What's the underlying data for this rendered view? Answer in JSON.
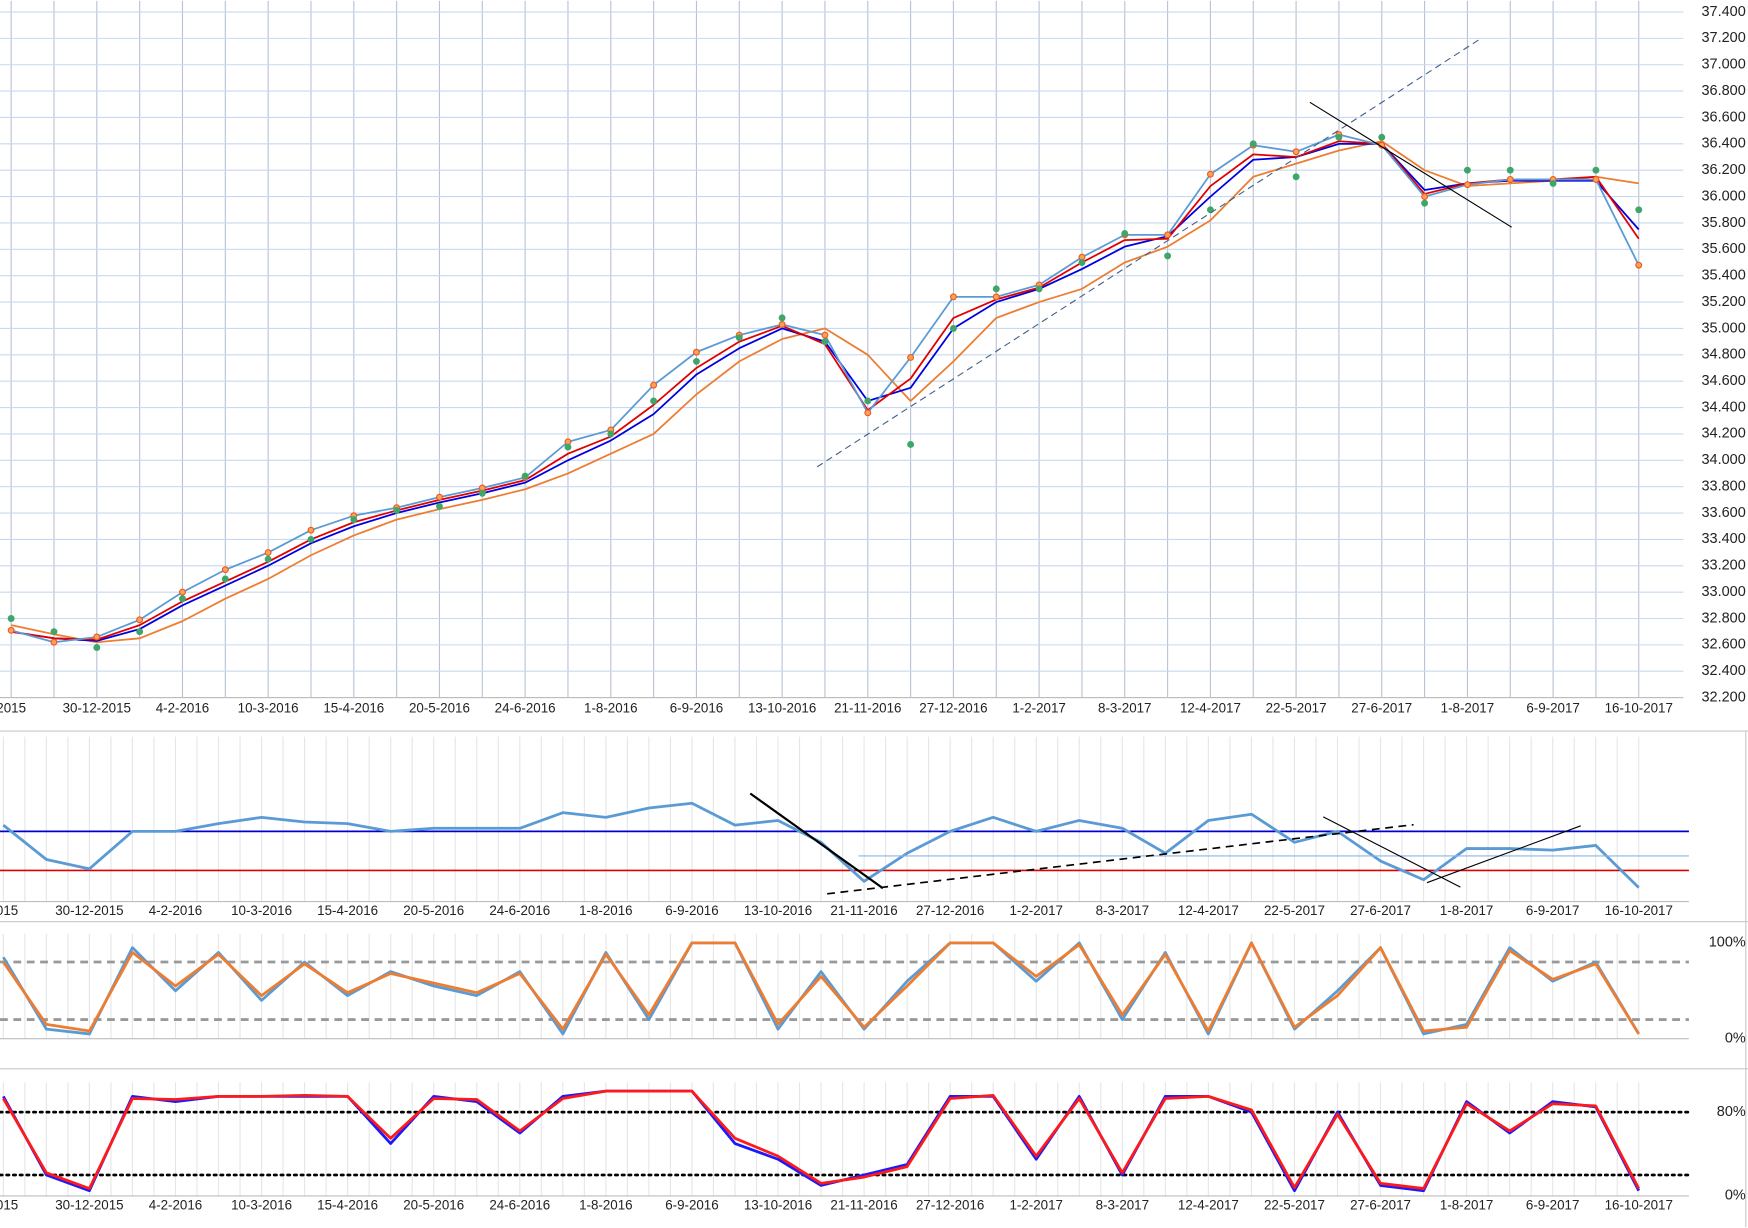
{
  "chart_data": [
    {
      "type": "line",
      "show_x_labels": true,
      "grid": true,
      "categories": [
        "2015",
        null,
        "30-12-2015",
        null,
        "4-2-2016",
        null,
        "10-3-2016",
        null,
        "15-4-2016",
        null,
        "20-5-2016",
        null,
        "24-6-2016",
        null,
        "1-8-2016",
        null,
        "6-9-2016",
        null,
        "13-10-2016",
        null,
        "21-11-2016",
        null,
        "27-12-2016",
        null,
        "1-2-2017",
        null,
        "8-3-2017",
        null,
        "12-4-2017",
        null,
        "22-5-2017",
        null,
        "27-6-2017",
        null,
        "1-8-2017",
        null,
        "6-9-2017",
        null,
        "16-10-2017"
      ],
      "ylim": [
        32.2,
        37.4
      ],
      "yticks": [
        {
          "value": 32.2,
          "label": "32.200"
        },
        {
          "value": 32.4,
          "label": "32.400"
        },
        {
          "value": 32.6,
          "label": "32.600"
        },
        {
          "value": 32.8,
          "label": "32.800"
        },
        {
          "value": 33.0,
          "label": "33.000"
        },
        {
          "value": 33.2,
          "label": "33.200"
        },
        {
          "value": 33.4,
          "label": "33.400"
        },
        {
          "value": 33.6,
          "label": "33.600"
        },
        {
          "value": 33.8,
          "label": "33.800"
        },
        {
          "value": 34.0,
          "label": "34.000"
        },
        {
          "value": 34.2,
          "label": "34.200"
        },
        {
          "value": 34.4,
          "label": "34.400"
        },
        {
          "value": 34.6,
          "label": "34.600"
        },
        {
          "value": 34.8,
          "label": "34.800"
        },
        {
          "value": 35.0,
          "label": "35.000"
        },
        {
          "value": 35.2,
          "label": "35.200"
        },
        {
          "value": 35.4,
          "label": "35.400"
        },
        {
          "value": 35.6,
          "label": "35.600"
        },
        {
          "value": 35.8,
          "label": "35.800"
        },
        {
          "value": 36.0,
          "label": "36.000"
        },
        {
          "value": 36.2,
          "label": "36.200"
        },
        {
          "value": 36.4,
          "label": "36.400"
        },
        {
          "value": 36.6,
          "label": "36.600"
        },
        {
          "value": 36.8,
          "label": "36.800"
        },
        {
          "value": 37.0,
          "label": "37.000"
        },
        {
          "value": 37.2,
          "label": "37.200"
        },
        {
          "value": 37.4,
          "label": "37.400"
        }
      ],
      "series": [
        {
          "color": "#ed7d31",
          "values": [
            32.75,
            32.68,
            32.62,
            32.65,
            32.78,
            32.95,
            33.1,
            33.28,
            33.43,
            33.55,
            33.63,
            33.7,
            33.78,
            33.9,
            34.05,
            34.2,
            34.5,
            34.75,
            34.92,
            35.0,
            34.8,
            34.45,
            34.75,
            35.08,
            35.2,
            35.3,
            35.5,
            35.62,
            35.82,
            36.15,
            36.25,
            36.35,
            36.42,
            36.2,
            36.08,
            36.1,
            36.12,
            36.15,
            36.1
          ]
        },
        {
          "color": "#0000e0",
          "values": [
            32.7,
            32.65,
            32.63,
            32.72,
            32.9,
            33.05,
            33.2,
            33.37,
            33.5,
            33.6,
            33.68,
            33.75,
            33.83,
            34.0,
            34.15,
            34.35,
            34.65,
            34.85,
            35.0,
            34.9,
            34.45,
            34.55,
            35.0,
            35.2,
            35.3,
            35.45,
            35.62,
            35.7,
            36.0,
            36.28,
            36.3,
            36.4,
            36.4,
            36.05,
            36.1,
            36.12,
            36.12,
            36.12,
            35.75
          ]
        },
        {
          "color": "#e00000",
          "values": [
            32.7,
            32.65,
            32.64,
            32.75,
            32.93,
            33.08,
            33.23,
            33.4,
            33.53,
            33.62,
            33.7,
            33.77,
            33.85,
            34.05,
            34.18,
            34.42,
            34.7,
            34.9,
            35.02,
            34.88,
            34.38,
            34.62,
            35.08,
            35.22,
            35.31,
            35.5,
            35.67,
            35.68,
            36.08,
            36.32,
            36.3,
            36.42,
            36.4,
            36.02,
            36.1,
            36.13,
            36.13,
            36.15,
            35.68
          ]
        },
        {
          "color": "#5b9bd5",
          "marker_color": "#f0561c",
          "values": [
            32.71,
            32.62,
            32.66,
            32.79,
            33.0,
            33.17,
            33.3,
            33.47,
            33.58,
            33.64,
            33.72,
            33.79,
            33.87,
            34.14,
            34.23,
            34.57,
            34.82,
            34.95,
            35.03,
            34.95,
            34.36,
            34.78,
            35.24,
            35.24,
            35.33,
            35.54,
            35.71,
            35.71,
            36.17,
            36.39,
            36.34,
            36.47,
            36.39,
            36.0,
            36.09,
            36.13,
            36.13,
            36.13,
            35.48
          ]
        },
        {
          "line": false,
          "marker_color": "#3fa66a",
          "values": [
            32.8,
            32.7,
            32.58,
            32.7,
            32.95,
            33.1,
            33.25,
            33.4,
            33.55,
            33.62,
            33.65,
            33.75,
            33.88,
            34.1,
            34.2,
            34.45,
            34.75,
            34.93,
            35.08,
            34.9,
            34.45,
            34.12,
            35.0,
            35.3,
            35.3,
            35.5,
            35.72,
            35.55,
            35.9,
            36.4,
            36.15,
            36.45,
            36.45,
            35.95,
            36.2,
            36.2,
            36.1,
            36.2,
            35.9
          ]
        }
      ]
    },
    {
      "type": "line",
      "show_x_labels": true,
      "ylim": [
        0,
        100
      ],
      "levels": [
        {
          "value": 45,
          "color": "#0000cc"
        },
        {
          "value": 20,
          "color": "#e00000"
        }
      ],
      "series": [
        {
          "color": "#5b9bd5",
          "values": [
            49,
            27,
            21,
            45,
            45,
            50,
            54,
            51,
            50,
            45,
            47,
            47,
            47,
            57,
            54,
            60,
            63,
            49,
            52,
            38,
            13,
            31,
            45,
            54,
            45,
            52,
            47,
            31,
            52,
            56,
            38,
            45,
            26,
            14,
            34,
            34,
            33,
            36,
            9
          ]
        }
      ]
    },
    {
      "type": "line",
      "show_x_labels": false,
      "ylim": [
        0,
        100
      ],
      "yticks": [
        {
          "value": 100,
          "label": "100%"
        },
        {
          "value": 0,
          "label": "0%"
        }
      ],
      "levels": [
        {
          "value": 80,
          "color": "#999999"
        },
        {
          "value": 20,
          "color": "#999999"
        }
      ],
      "level_style": "dashed",
      "series": [
        {
          "color": "#5b9bd5",
          "values": [
            85,
            10,
            5,
            95,
            50,
            90,
            40,
            80,
            45,
            70,
            55,
            45,
            70,
            5,
            90,
            20,
            100,
            100,
            10,
            70,
            10,
            60,
            100,
            100,
            60,
            100,
            20,
            90,
            5,
            100,
            10,
            50,
            95,
            5,
            15,
            95,
            60,
            80,
            5
          ]
        },
        {
          "color": "#ed7d31",
          "values": [
            80,
            15,
            8,
            90,
            55,
            88,
            45,
            78,
            48,
            68,
            58,
            48,
            68,
            10,
            88,
            25,
            100,
            100,
            15,
            65,
            12,
            55,
            100,
            100,
            65,
            98,
            25,
            88,
            8,
            100,
            12,
            45,
            95,
            8,
            12,
            92,
            62,
            78,
            5
          ]
        }
      ]
    },
    {
      "type": "line",
      "show_x_labels": true,
      "ylim": [
        0,
        100
      ],
      "yticks": [
        {
          "value": 80,
          "label": "80%"
        },
        {
          "value": 0,
          "label": "0%"
        }
      ],
      "levels": [
        {
          "value": 80,
          "color": "#000000"
        },
        {
          "value": 20,
          "color": "#000000"
        }
      ],
      "level_style": "dotted",
      "series": [
        {
          "color": "#1a1aff",
          "values": [
            95,
            20,
            5,
            95,
            90,
            95,
            95,
            95,
            95,
            50,
            95,
            90,
            60,
            95,
            100,
            100,
            100,
            50,
            35,
            10,
            20,
            30,
            95,
            95,
            35,
            95,
            20,
            95,
            95,
            80,
            5,
            80,
            10,
            5,
            90,
            60,
            90,
            85,
            5
          ]
        },
        {
          "color": "#ff1a1a",
          "values": [
            93,
            22,
            7,
            93,
            92,
            95,
            95,
            96,
            95,
            55,
            93,
            92,
            62,
            93,
            100,
            100,
            100,
            55,
            38,
            12,
            18,
            28,
            93,
            96,
            38,
            93,
            22,
            93,
            95,
            82,
            8,
            78,
            12,
            7,
            88,
            62,
            88,
            86,
            7
          ]
        }
      ]
    }
  ]
}
